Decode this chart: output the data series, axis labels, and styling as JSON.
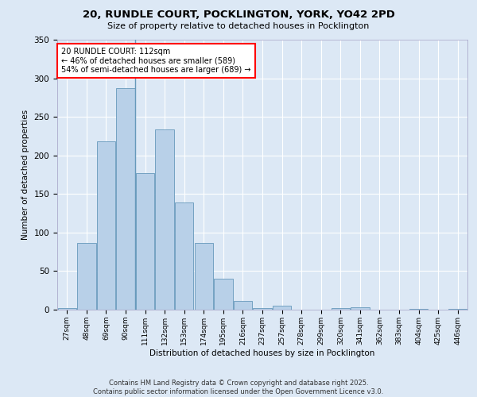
{
  "title_line1": "20, RUNDLE COURT, POCKLINGTON, YORK, YO42 2PD",
  "title_line2": "Size of property relative to detached houses in Pocklington",
  "xlabel": "Distribution of detached houses by size in Pocklington",
  "ylabel": "Number of detached properties",
  "categories": [
    "27sqm",
    "48sqm",
    "69sqm",
    "90sqm",
    "111sqm",
    "132sqm",
    "153sqm",
    "174sqm",
    "195sqm",
    "216sqm",
    "237sqm",
    "257sqm",
    "278sqm",
    "299sqm",
    "320sqm",
    "341sqm",
    "362sqm",
    "383sqm",
    "404sqm",
    "425sqm",
    "446sqm"
  ],
  "values": [
    2,
    86,
    218,
    287,
    177,
    234,
    139,
    86,
    40,
    11,
    2,
    5,
    0,
    0,
    2,
    3,
    0,
    0,
    1,
    0,
    1
  ],
  "bar_color": "#b8d0e8",
  "bar_edge_color": "#6699bb",
  "background_color": "#dce8f5",
  "grid_color": "#ffffff",
  "vline_color": "#6699bb",
  "annotation_text": "20 RUNDLE COURT: 112sqm\n← 46% of detached houses are smaller (589)\n54% of semi-detached houses are larger (689) →",
  "ylim": [
    0,
    350
  ],
  "yticks": [
    0,
    50,
    100,
    150,
    200,
    250,
    300,
    350
  ],
  "footer_line1": "Contains HM Land Registry data © Crown copyright and database right 2025.",
  "footer_line2": "Contains public sector information licensed under the Open Government Licence v3.0."
}
